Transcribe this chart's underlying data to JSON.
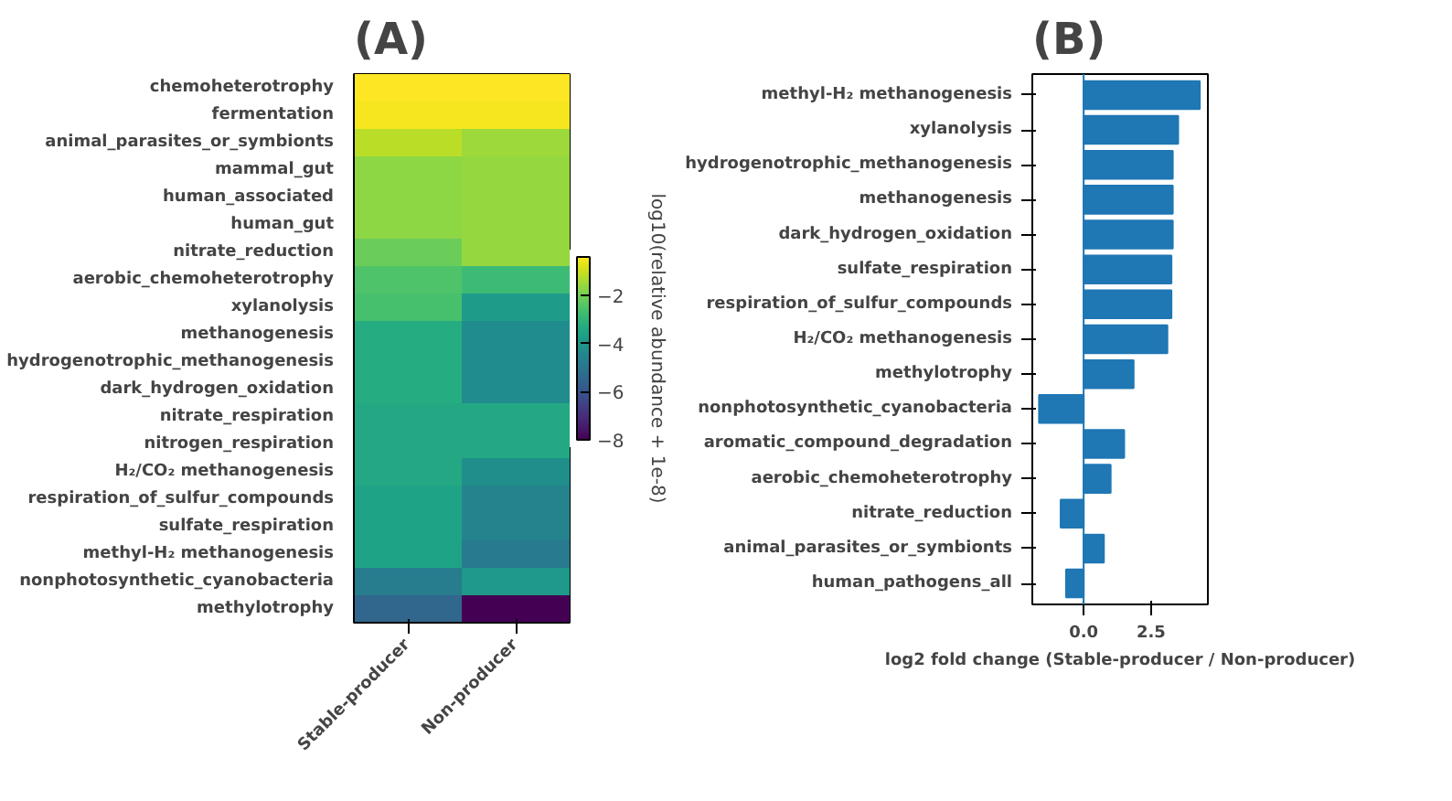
{
  "chart_data": [
    {
      "type": "heatmap",
      "title": "(A)",
      "categories": [
        "Stable-producer",
        "Non-producer"
      ],
      "y_categories": [
        "chemoheterotrophy",
        "fermentation",
        "animal_parasites_or_symbionts",
        "mammal_gut",
        "human_associated",
        "human_gut",
        "nitrate_reduction",
        "aerobic_chemoheterotrophy",
        "xylanolysis",
        "methanogenesis",
        "hydrogenotrophic_methanogenesis",
        "dark_hydrogen_oxidation",
        "nitrate_respiration",
        "nitrogen_respiration",
        "H₂/CO₂ methanogenesis",
        "respiration_of_sulfur_compounds",
        "sulfate_respiration",
        "methyl-H₂ methanogenesis",
        "nonphotosynthetic_cyanobacteria",
        "methylotrophy"
      ],
      "cells": [
        [
          -0.4,
          -0.4
        ],
        [
          -0.5,
          -0.5
        ],
        [
          -1.2,
          -1.5
        ],
        [
          -1.7,
          -1.6
        ],
        [
          -1.7,
          -1.6
        ],
        [
          -1.7,
          -1.6
        ],
        [
          -2.1,
          -1.6
        ],
        [
          -2.5,
          -2.8
        ],
        [
          -2.6,
          -3.8
        ],
        [
          -3.3,
          -4.3
        ],
        [
          -3.3,
          -4.3
        ],
        [
          -3.3,
          -4.3
        ],
        [
          -3.4,
          -3.4
        ],
        [
          -3.4,
          -3.4
        ],
        [
          -3.4,
          -4.2
        ],
        [
          -3.6,
          -4.6
        ],
        [
          -3.6,
          -4.6
        ],
        [
          -3.6,
          -4.9
        ],
        [
          -4.8,
          -3.9
        ],
        [
          -5.5,
          -8
        ]
      ],
      "clim": [
        -8,
        -0.4
      ],
      "cticks": [
        {
          "value": -2,
          "label": "−2"
        },
        {
          "value": -4,
          "label": "−4"
        },
        {
          "value": -6,
          "label": "−6"
        },
        {
          "value": -8,
          "label": "−8"
        }
      ],
      "clabel": "log10(relative abundance + 1e-8)"
    },
    {
      "type": "bar",
      "orientation": "horizontal",
      "title": "(B)",
      "color": "#1f77b4",
      "categories": [
        "methyl-H₂ methanogenesis",
        "xylanolysis",
        "hydrogenotrophic_methanogenesis",
        "methanogenesis",
        "dark_hydrogen_oxidation",
        "sulfate_respiration",
        "respiration_of_sulfur_compounds",
        "H₂/CO₂ methanogenesis",
        "methylotrophy",
        "nonphotosynthetic_cyanobacteria",
        "aromatic_compound_degradation",
        "aerobic_chemoheterotrophy",
        "nitrate_reduction",
        "animal_parasites_or_symbionts",
        "human_pathogens_all"
      ],
      "values": [
        4.3,
        3.5,
        3.3,
        3.3,
        3.3,
        3.25,
        3.25,
        3.1,
        1.85,
        -1.65,
        1.5,
        1.0,
        -0.85,
        0.75,
        -0.65
      ],
      "xlim": [
        -1.9,
        4.6
      ],
      "xticks": [
        {
          "value": 0,
          "label": "0.0"
        },
        2.5
      ],
      "xlabel": "log2 fold change (Stable-producer / Non-producer)",
      "ref_lines": [
        {
          "axis": "x",
          "value": 0,
          "color": "#1f77b4"
        }
      ],
      "grid": false
    }
  ]
}
